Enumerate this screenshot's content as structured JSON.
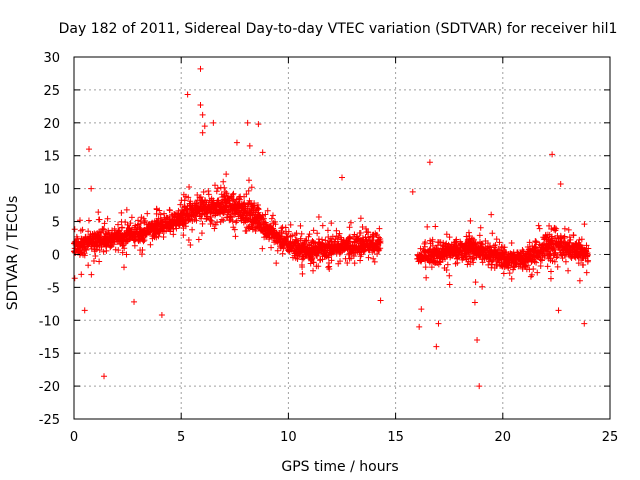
{
  "chart_data": {
    "type": "scatter",
    "title": "Day 182 of 2011, Sidereal Day-to-day VTEC variation (SDTVAR) for receiver hil1",
    "xlabel": "GPS time / hours",
    "ylabel": "SDTVAR / TECUs",
    "xlim": [
      0,
      25
    ],
    "ylim": [
      -25,
      30
    ],
    "xticks": [
      0,
      5,
      10,
      15,
      20,
      25
    ],
    "yticks": [
      -25,
      -20,
      -15,
      -10,
      -5,
      0,
      5,
      10,
      15,
      20,
      25,
      30
    ],
    "xtick_labels": [
      "0",
      "5",
      "10",
      "15",
      "20",
      "25"
    ],
    "ytick_labels": [
      "-25",
      "-20",
      "-15",
      "-10",
      "-5",
      "0",
      "5",
      "10",
      "15",
      "20",
      "25",
      "30"
    ],
    "grid": true,
    "marker": "+",
    "series_color": "#ff0000",
    "series": [
      {
        "name": "SDTVAR",
        "trend": [
          [
            0.0,
            1.0
          ],
          [
            0.5,
            1.5
          ],
          [
            1.0,
            2.0
          ],
          [
            1.5,
            2.2
          ],
          [
            2.0,
            2.5
          ],
          [
            2.5,
            3.0
          ],
          [
            3.0,
            3.3
          ],
          [
            3.5,
            3.8
          ],
          [
            4.0,
            4.2
          ],
          [
            4.5,
            4.8
          ],
          [
            5.0,
            5.5
          ],
          [
            5.5,
            6.2
          ],
          [
            6.0,
            7.0
          ],
          [
            6.5,
            7.2
          ],
          [
            7.0,
            7.5
          ],
          [
            7.5,
            7.0
          ],
          [
            8.0,
            6.5
          ],
          [
            8.5,
            5.5
          ],
          [
            9.0,
            4.0
          ],
          [
            9.5,
            2.5
          ],
          [
            10.0,
            1.5
          ],
          [
            10.5,
            0.8
          ],
          [
            11.0,
            0.5
          ],
          [
            11.5,
            0.8
          ],
          [
            12.0,
            1.0
          ],
          [
            12.5,
            1.2
          ],
          [
            13.0,
            1.3
          ],
          [
            13.5,
            1.5
          ],
          [
            14.0,
            1.5
          ],
          [
            14.3,
            1.5
          ],
          [
            16.0,
            -0.5
          ],
          [
            16.5,
            -0.3
          ],
          [
            17.0,
            0.0
          ],
          [
            17.5,
            0.5
          ],
          [
            18.0,
            0.8
          ],
          [
            18.5,
            1.0
          ],
          [
            19.0,
            0.5
          ],
          [
            19.5,
            0.0
          ],
          [
            20.0,
            -0.5
          ],
          [
            20.5,
            -0.8
          ],
          [
            21.0,
            -0.5
          ],
          [
            21.5,
            0.0
          ],
          [
            22.0,
            1.0
          ],
          [
            22.5,
            1.5
          ],
          [
            23.0,
            1.0
          ],
          [
            23.5,
            0.5
          ],
          [
            24.0,
            0.0
          ]
        ],
        "outliers": [
          [
            0.7,
            16.0
          ],
          [
            0.8,
            10.0
          ],
          [
            1.4,
            -18.5
          ],
          [
            4.1,
            -9.2
          ],
          [
            5.3,
            24.3
          ],
          [
            5.9,
            28.2
          ],
          [
            5.9,
            22.7
          ],
          [
            6.0,
            21.2
          ],
          [
            6.1,
            19.5
          ],
          [
            6.5,
            20.0
          ],
          [
            6.0,
            18.5
          ],
          [
            7.6,
            17.0
          ],
          [
            8.1,
            20.0
          ],
          [
            8.2,
            16.5
          ],
          [
            8.6,
            19.8
          ],
          [
            8.8,
            15.5
          ],
          [
            12.5,
            11.7
          ],
          [
            14.3,
            -7.0
          ],
          [
            15.8,
            9.5
          ],
          [
            16.2,
            -8.3
          ],
          [
            16.1,
            -11.0
          ],
          [
            16.6,
            14.0
          ],
          [
            16.9,
            -14.0
          ],
          [
            17.0,
            -10.5
          ],
          [
            18.9,
            -20.0
          ],
          [
            18.8,
            -13.0
          ],
          [
            18.7,
            -7.3
          ],
          [
            22.3,
            15.2
          ],
          [
            22.7,
            10.7
          ],
          [
            23.8,
            -10.5
          ],
          [
            22.6,
            -8.5
          ],
          [
            2.8,
            -7.2
          ],
          [
            0.5,
            -8.5
          ]
        ]
      }
    ]
  }
}
